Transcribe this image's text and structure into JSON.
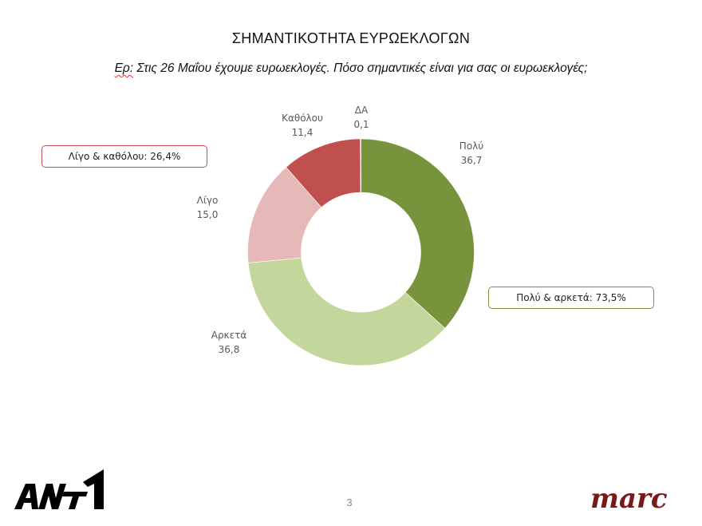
{
  "header": {
    "title": "ΣΗΜΑΝΤΙΚΟΤΗΤΑ ΕΥΡΩΕΚΛΟΓΩΝ",
    "question_prefix": "Ερ:",
    "question_text": " Στις 26 Μαΐου έχουμε ευρωεκλογές. Πόσο σημαντικές είναι για σας οι ευρωεκλογές;"
  },
  "chart_data": {
    "type": "pie",
    "variant": "donut",
    "title": "ΣΗΜΑΝΤΙΚΟΤΗΤΑ ΕΥΡΩΕΚΛΟΓΩΝ",
    "subtitle": "Ερ: Στις 26 Μαΐου έχουμε ευρωεκλογές. Πόσο σημαντικές είναι για σας οι ευρωεκλογές;",
    "start_angle_deg": 0,
    "direction": "clockwise",
    "slices": [
      {
        "label": "Πολύ",
        "value": 36.7,
        "value_text": "36,7",
        "color": "#77933c"
      },
      {
        "label": "Αρκετά",
        "value": 36.8,
        "value_text": "36,8",
        "color": "#c3d69b"
      },
      {
        "label": "Λίγο",
        "value": 15.0,
        "value_text": "15,0",
        "color": "#e6b9b8"
      },
      {
        "label": "Καθόλου",
        "value": 11.4,
        "value_text": "11,4",
        "color": "#c0504d"
      },
      {
        "label": "ΔΑ",
        "value": 0.1,
        "value_text": "0,1",
        "color": "#7f7f7f"
      }
    ],
    "annotations": [
      {
        "text": "Λίγο & καθόλου: 26,4%",
        "border_color": "#c0504d"
      },
      {
        "text": "Πολύ & αρκετά: 73,5%",
        "border_color": "#77933c"
      }
    ],
    "legend": "none",
    "data_labels": "category and value"
  },
  "footer": {
    "page_number": "3",
    "left_logo": "ANT1",
    "right_logo": "marc"
  }
}
